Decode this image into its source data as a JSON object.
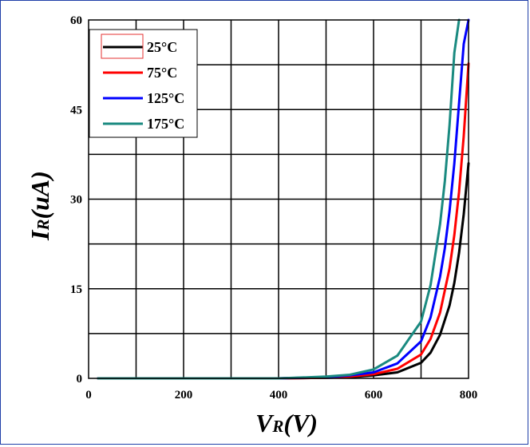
{
  "chart_data": {
    "type": "line",
    "xlabel_main": "V",
    "xlabel_sub": "R",
    "xlabel_rest": "(V)",
    "ylabel_main": "I",
    "ylabel_sub": "R",
    "ylabel_rest": "(uA)",
    "xlim": [
      0,
      800
    ],
    "ylim": [
      0,
      60
    ],
    "x_ticks": [
      0,
      200,
      400,
      600,
      800
    ],
    "y_ticks": [
      0,
      15,
      30,
      45,
      60
    ],
    "grid": true,
    "legend_position": "top-left",
    "series": [
      {
        "name": "25°C",
        "color": "#000000",
        "x": [
          20,
          400,
          500,
          550,
          600,
          650,
          700,
          720,
          740,
          760,
          770,
          780,
          790,
          800
        ],
        "y": [
          0,
          0,
          0.1,
          0.2,
          0.5,
          1.0,
          2.6,
          4.3,
          7.3,
          12.2,
          16.0,
          21.0,
          27.5,
          36.0
        ]
      },
      {
        "name": "75°C",
        "color": "#ff0000",
        "x": [
          20,
          400,
          500,
          550,
          600,
          650,
          700,
          720,
          740,
          760,
          770,
          780,
          790,
          800
        ],
        "y": [
          0,
          0,
          0.1,
          0.3,
          0.7,
          1.6,
          4.0,
          6.6,
          11.0,
          18.4,
          24.0,
          31.2,
          40.6,
          52.7
        ]
      },
      {
        "name": "125°C",
        "color": "#0000ff",
        "x": [
          20,
          400,
          500,
          550,
          600,
          650,
          700,
          720,
          740,
          750,
          760,
          770,
          780,
          790,
          800
        ],
        "y": [
          0,
          0,
          0.2,
          0.5,
          1.0,
          2.5,
          6.2,
          10.2,
          17.0,
          21.8,
          28.0,
          36.0,
          46.0,
          56.0,
          60.0
        ]
      },
      {
        "name": "175°C",
        "color": "#1a8a80",
        "x": [
          20,
          400,
          500,
          550,
          600,
          650,
          700,
          720,
          740,
          750,
          760,
          770,
          780
        ],
        "y": [
          0,
          0,
          0.3,
          0.6,
          1.5,
          3.8,
          9.5,
          15.6,
          25.8,
          33.0,
          42.4,
          54.5,
          60.0
        ]
      }
    ]
  }
}
